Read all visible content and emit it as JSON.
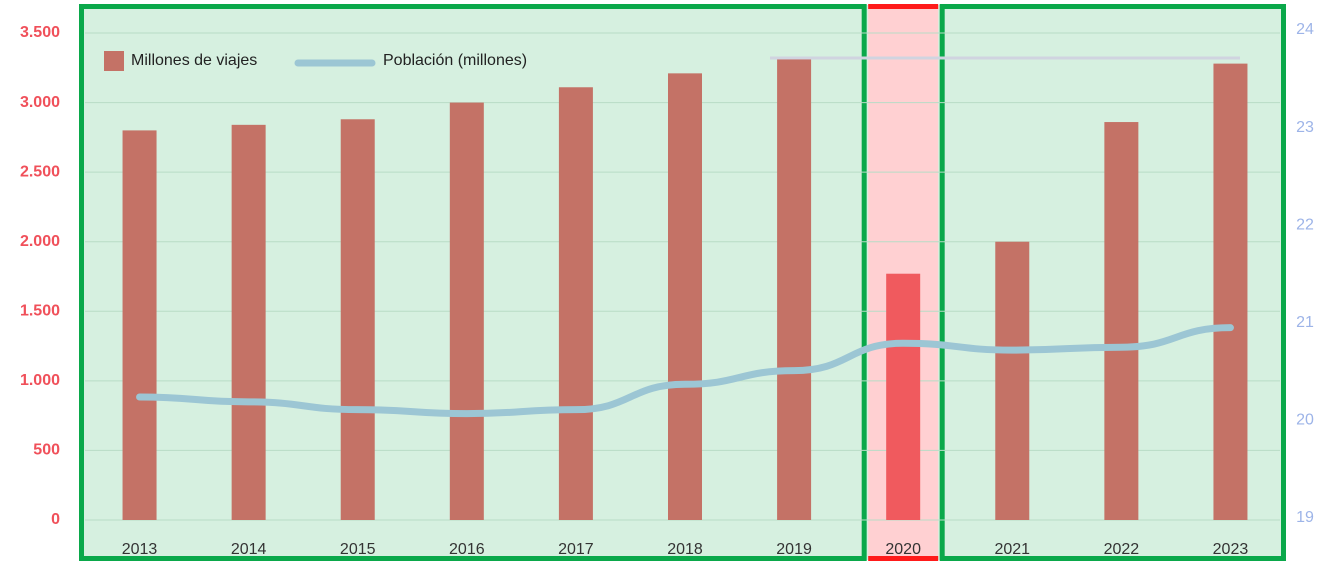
{
  "chart_data": {
    "type": "bar",
    "categories": [
      "2013",
      "2014",
      "2015",
      "2016",
      "2017",
      "2018",
      "2019",
      "2020",
      "2021",
      "2022",
      "2023"
    ],
    "series": [
      {
        "name": "Millones de viajes",
        "color": "#c47266",
        "values": [
          2800,
          2840,
          2880,
          3000,
          3110,
          3210,
          3310,
          1770,
          2000,
          2860,
          3280
        ]
      },
      {
        "name": "Población (millones)",
        "color": "#9cc6d4",
        "axis": "y2",
        "type": "line",
        "values": [
          20.24,
          20.19,
          20.11,
          20.07,
          20.11,
          20.37,
          20.51,
          20.79,
          20.72,
          20.75,
          20.95
        ]
      }
    ],
    "highlight_category": "2020",
    "highlight_color": "#f05a5e",
    "ylim": [
      0,
      3500
    ],
    "yticks": [
      0,
      500,
      {
        "value": 1000,
        "label": "1.000"
      },
      {
        "value": 1500,
        "label": "1.500"
      },
      {
        "value": 2000,
        "label": "2.000"
      },
      {
        "value": 2500,
        "label": "2.500"
      },
      {
        "value": 3000,
        "label": "3.000"
      },
      {
        "value": 3500,
        "label": "3.500"
      }
    ],
    "y2lim": [
      19,
      24
    ],
    "y2ticks": [
      19,
      20,
      21,
      22,
      23,
      24
    ],
    "grid": true,
    "legend": "top-left"
  }
}
